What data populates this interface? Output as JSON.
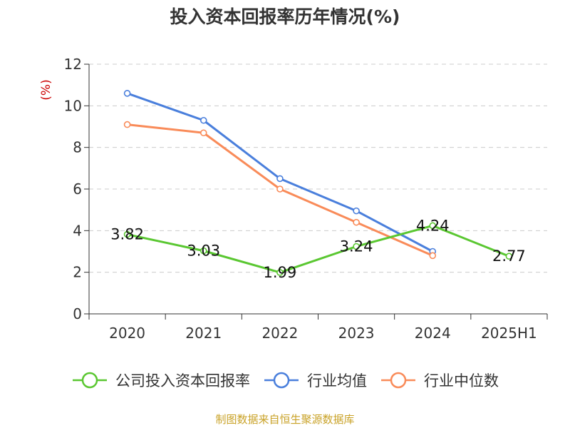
{
  "title": "投入资本回报率历年情况(%)",
  "source_note": "制图数据来自恒生聚源数据库",
  "colors": {
    "company": "#5ac731",
    "industry_avg": "#4a7fdc",
    "industry_median": "#f98b59",
    "grid": "#cccccc",
    "axis": "#333333",
    "unit_label": "#cc0000",
    "source": "#c9a227"
  },
  "legend": [
    {
      "label": "公司投入资本回报率",
      "color": "#5ac731",
      "symbol": "line-with-circle-icon"
    },
    {
      "label": "行业均值",
      "color": "#4a7fdc",
      "symbol": "line-with-circle-icon"
    },
    {
      "label": "行业中位数",
      "color": "#f98b59",
      "symbol": "line-with-circle-icon"
    }
  ],
  "chart_data": {
    "type": "line",
    "title": "投入资本回报率历年情况(%)",
    "categories": [
      "2020",
      "2021",
      "2022",
      "2023",
      "2024",
      "2025H1"
    ],
    "ylabel": "(%)",
    "ylim": [
      0,
      12
    ],
    "yticks": [
      0,
      2,
      4,
      6,
      8,
      10,
      12
    ],
    "grid": true,
    "legend_position": "bottom",
    "series": [
      {
        "name": "公司投入资本回报率",
        "values": [
          3.82,
          3.03,
          1.99,
          3.24,
          4.24,
          2.77
        ],
        "labels": [
          "3.82",
          "3.03",
          "1.99",
          "3.24",
          "4.24",
          "2.77"
        ]
      },
      {
        "name": "行业均值",
        "values": [
          10.6,
          9.3,
          6.5,
          4.95,
          3.0,
          null
        ]
      },
      {
        "name": "行业中位数",
        "values": [
          9.1,
          8.7,
          6.0,
          4.4,
          2.8,
          null
        ]
      }
    ]
  }
}
